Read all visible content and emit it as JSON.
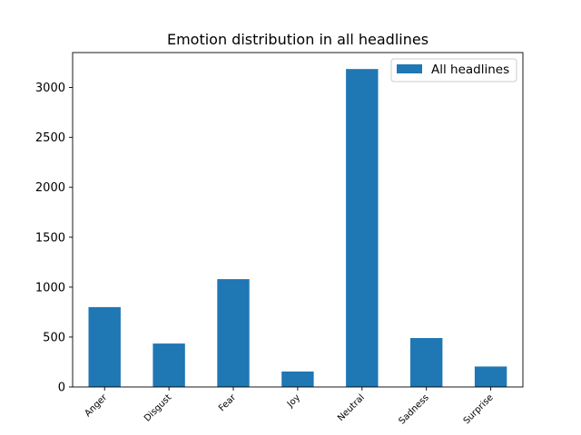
{
  "chart_data": {
    "type": "bar",
    "title": "Emotion distribution in all headlines",
    "xlabel": "",
    "ylabel": "",
    "categories": [
      "Anger",
      "Disgust",
      "Fear",
      "Joy",
      "Neutral",
      "Sadness",
      "Surprise"
    ],
    "series": [
      {
        "name": "All headlines",
        "color": "#1f77b4",
        "values": [
          800,
          435,
          1080,
          155,
          3185,
          490,
          205
        ]
      }
    ],
    "ylim": [
      0,
      3350
    ],
    "yticks": [
      0,
      500,
      1000,
      1500,
      2000,
      2500,
      3000
    ],
    "grid": false,
    "legend_position": "top-right"
  }
}
